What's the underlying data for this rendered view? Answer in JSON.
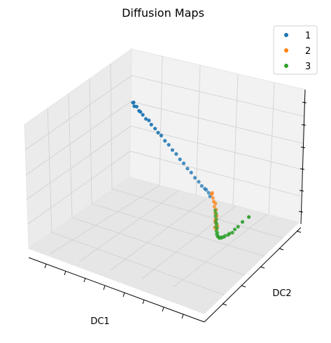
{
  "chart_data": {
    "type": "scatter",
    "projection": "3d",
    "title": "Diffusion Maps",
    "xlabel": "DC1",
    "ylabel": "DC2",
    "zlabel": "",
    "grid": true,
    "legend_position": "top-right",
    "series": [
      {
        "name": "1",
        "color": "#1f77b4",
        "points": [
          [
            0.02,
            0.98,
            0.6
          ],
          [
            0.03,
            0.97,
            0.61
          ],
          [
            0.04,
            0.96,
            0.59
          ],
          [
            0.06,
            0.95,
            0.6
          ],
          [
            0.08,
            0.94,
            0.58
          ],
          [
            0.1,
            0.92,
            0.59
          ],
          [
            0.12,
            0.91,
            0.58
          ],
          [
            0.15,
            0.89,
            0.57
          ],
          [
            0.18,
            0.87,
            0.58
          ],
          [
            0.2,
            0.86,
            0.56
          ],
          [
            0.24,
            0.83,
            0.56
          ],
          [
            0.27,
            0.81,
            0.55
          ],
          [
            0.3,
            0.79,
            0.55
          ],
          [
            0.34,
            0.76,
            0.54
          ],
          [
            0.38,
            0.73,
            0.54
          ],
          [
            0.42,
            0.7,
            0.53
          ],
          [
            0.46,
            0.67,
            0.53
          ],
          [
            0.5,
            0.64,
            0.52
          ],
          [
            0.54,
            0.61,
            0.52
          ],
          [
            0.58,
            0.58,
            0.51
          ],
          [
            0.62,
            0.55,
            0.51
          ],
          [
            0.66,
            0.52,
            0.5
          ],
          [
            0.7,
            0.49,
            0.5
          ],
          [
            0.73,
            0.47,
            0.49
          ],
          [
            0.76,
            0.45,
            0.49
          ],
          [
            0.78,
            0.43,
            0.5
          ],
          [
            0.8,
            0.42,
            0.49
          ],
          [
            0.82,
            0.4,
            0.48
          ]
        ]
      },
      {
        "name": "2",
        "color": "#ff7f0e",
        "points": [
          [
            0.83,
            0.4,
            0.5
          ],
          [
            0.84,
            0.39,
            0.52
          ],
          [
            0.85,
            0.38,
            0.49
          ],
          [
            0.86,
            0.37,
            0.47
          ],
          [
            0.87,
            0.37,
            0.46
          ],
          [
            0.87,
            0.36,
            0.44
          ],
          [
            0.88,
            0.36,
            0.42
          ],
          [
            0.88,
            0.35,
            0.4
          ],
          [
            0.89,
            0.35,
            0.38
          ],
          [
            0.89,
            0.34,
            0.36
          ],
          [
            0.88,
            0.35,
            0.34
          ],
          [
            0.89,
            0.34,
            0.33
          ],
          [
            0.9,
            0.34,
            0.31
          ],
          [
            0.89,
            0.33,
            0.3
          ],
          [
            0.9,
            0.33,
            0.29
          ]
        ]
      },
      {
        "name": "3",
        "color": "#2ca02c",
        "points": [
          [
            0.88,
            0.35,
            0.42
          ],
          [
            0.88,
            0.36,
            0.39
          ],
          [
            0.87,
            0.37,
            0.36
          ],
          [
            0.87,
            0.38,
            0.33
          ],
          [
            0.86,
            0.39,
            0.3
          ],
          [
            0.86,
            0.4,
            0.28
          ],
          [
            0.85,
            0.41,
            0.25
          ],
          [
            0.85,
            0.42,
            0.23
          ],
          [
            0.84,
            0.43,
            0.2
          ],
          [
            0.84,
            0.44,
            0.18
          ],
          [
            0.83,
            0.45,
            0.16
          ],
          [
            0.83,
            0.46,
            0.14
          ],
          [
            0.82,
            0.48,
            0.12
          ],
          [
            0.82,
            0.49,
            0.11
          ],
          [
            0.81,
            0.51,
            0.09
          ],
          [
            0.81,
            0.53,
            0.08
          ],
          [
            0.8,
            0.55,
            0.07
          ],
          [
            0.8,
            0.57,
            0.06
          ],
          [
            0.79,
            0.6,
            0.05
          ],
          [
            0.79,
            0.63,
            0.04
          ],
          [
            0.78,
            0.66,
            0.03
          ],
          [
            0.78,
            0.69,
            0.02
          ],
          [
            0.77,
            0.73,
            0.02
          ],
          [
            0.76,
            0.78,
            0.01
          ],
          [
            0.75,
            0.84,
            0.01
          ],
          [
            0.74,
            0.92,
            0.0
          ]
        ]
      }
    ]
  }
}
